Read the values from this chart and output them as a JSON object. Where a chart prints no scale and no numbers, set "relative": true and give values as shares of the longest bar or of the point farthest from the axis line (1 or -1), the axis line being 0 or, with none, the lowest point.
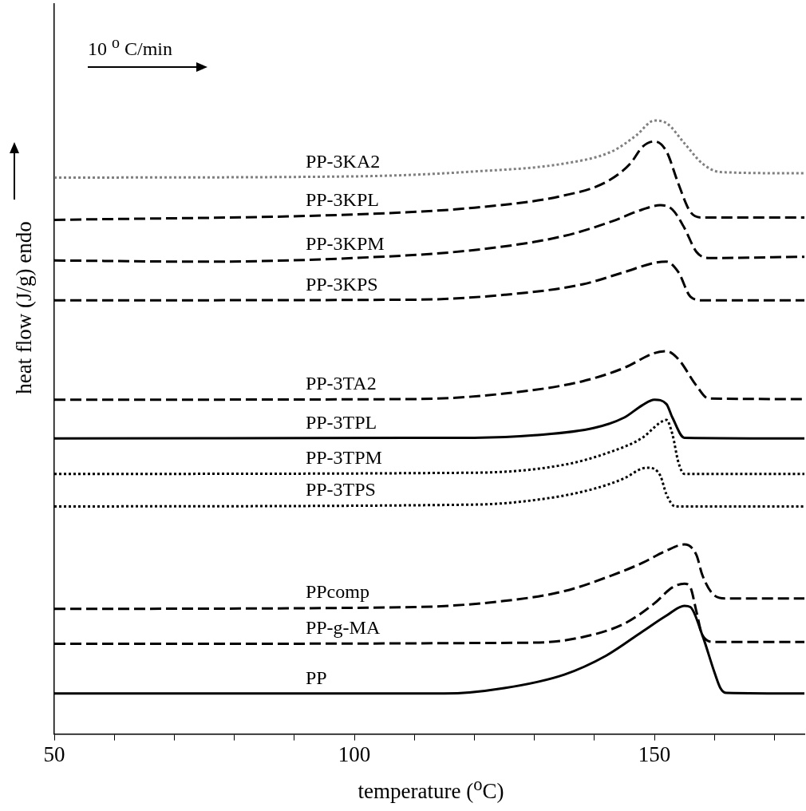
{
  "chart_data": {
    "type": "line",
    "xlabel": "temperature ($^{o}$C)",
    "ylabel": "heat flow (J/g) endo",
    "relative": true,
    "xlim": [
      50,
      175
    ],
    "xticks": [
      50,
      {
        "value": 60,
        "label": null
      },
      {
        "value": 70,
        "label": null
      },
      {
        "value": 80,
        "label": null
      },
      {
        "value": 90,
        "label": null
      },
      100,
      {
        "value": 110,
        "label": null
      },
      {
        "value": 120,
        "label": null
      },
      {
        "value": 130,
        "label": null
      },
      {
        "value": 140,
        "label": null
      },
      150,
      {
        "value": 160,
        "label": null
      },
      {
        "value": 170,
        "label": null
      }
    ],
    "tick_labels": "x",
    "legend": false,
    "grid": false,
    "marker": "none",
    "annotations": [
      "10 $^{o}$ C/min"
    ],
    "series": [
      {
        "name": "PP-3KA2",
        "color": "#808080",
        "line_style": "dotted",
        "x": [
          50,
          100,
          120,
          135,
          143,
          147,
          150,
          152,
          155,
          158,
          161,
          175
        ],
        "values": [
          0.907,
          0.909,
          0.917,
          0.93,
          0.95,
          0.976,
          1,
          0.996,
          0.963,
          0.93,
          0.916,
          0.914
        ]
      },
      {
        "name": "PP-3KPL",
        "color": "#000000",
        "line_style": "dashed",
        "x": [
          50,
          100,
          120,
          135,
          142,
          146,
          148,
          150,
          152,
          154,
          156,
          158,
          175
        ],
        "values": [
          0.838,
          0.847,
          0.858,
          0.878,
          0.9,
          0.93,
          0.957,
          0.966,
          0.95,
          0.897,
          0.851,
          0.842,
          0.842
        ]
      },
      {
        "name": "PP-3KPM",
        "color": "#000000",
        "line_style": "dashed",
        "x": [
          50,
          75,
          100,
          120,
          135,
          143,
          148,
          151,
          153,
          155,
          157,
          159,
          175
        ],
        "values": [
          0.772,
          0.77,
          0.776,
          0.789,
          0.812,
          0.836,
          0.855,
          0.862,
          0.855,
          0.825,
          0.786,
          0.776,
          0.778
        ]
      },
      {
        "name": "PP-3KPS",
        "color": "#000000",
        "line_style": "dashed",
        "x": [
          50,
          110,
          125,
          138,
          145,
          150,
          152,
          154,
          156,
          158,
          175
        ],
        "values": [
          0.707,
          0.708,
          0.716,
          0.733,
          0.753,
          0.768,
          0.77,
          0.753,
          0.713,
          0.707,
          0.707
        ]
      },
      {
        "name": "PP-3TA2",
        "color": "#000000",
        "line_style": "dashed",
        "x": [
          50,
          110,
          125,
          138,
          145,
          150,
          152,
          154,
          157,
          159,
          175
        ],
        "values": [
          0.545,
          0.546,
          0.555,
          0.575,
          0.597,
          0.621,
          0.624,
          0.611,
          0.568,
          0.547,
          0.546
        ]
      },
      {
        "name": "PP-3TPL",
        "color": "#000000",
        "line_style": "solid",
        "x": [
          50,
          120,
          130,
          140,
          145,
          148,
          150,
          152,
          153,
          155,
          175
        ],
        "values": [
          0.482,
          0.483,
          0.487,
          0.499,
          0.516,
          0.536,
          0.545,
          0.538,
          0.516,
          0.483,
          0.482
        ]
      },
      {
        "name": "PP-3TPM",
        "color": "#000000",
        "line_style": "dotted",
        "x": [
          50,
          120,
          135,
          143,
          148,
          151,
          152,
          153,
          154,
          155,
          175
        ],
        "values": [
          0.424,
          0.426,
          0.439,
          0.461,
          0.483,
          0.508,
          0.512,
          0.489,
          0.443,
          0.424,
          0.424
        ]
      },
      {
        "name": "PP-3TPS",
        "color": "#000000",
        "line_style": "dotted",
        "x": [
          50,
          120,
          132,
          140,
          145,
          148,
          149,
          151,
          152,
          153.5,
          175
        ],
        "values": [
          0.371,
          0.374,
          0.384,
          0.4,
          0.417,
          0.433,
          0.434,
          0.421,
          0.391,
          0.371,
          0.371
        ]
      },
      {
        "name": "PPcomp",
        "color": "#000000",
        "line_style": "dashed",
        "x": [
          50,
          110,
          125,
          135,
          143,
          148,
          152,
          155,
          157,
          158,
          160,
          162,
          175
        ],
        "values": [
          0.204,
          0.207,
          0.217,
          0.233,
          0.259,
          0.279,
          0.299,
          0.309,
          0.292,
          0.259,
          0.226,
          0.221,
          0.221
        ]
      },
      {
        "name": "PP-g-MA",
        "color": "#000000",
        "line_style": "dashed",
        "x": [
          50,
          130,
          138,
          145,
          150,
          153,
          155,
          156,
          157,
          158,
          160,
          175
        ],
        "values": [
          0.147,
          0.149,
          0.158,
          0.18,
          0.213,
          0.239,
          0.245,
          0.239,
          0.2,
          0.161,
          0.15,
          0.15
        ]
      },
      {
        "name": "PP",
        "color": "#000000",
        "line_style": "solid",
        "x": [
          50,
          115,
          125,
          135,
          142,
          148,
          152,
          155,
          156,
          158,
          160,
          161,
          162,
          175
        ],
        "values": [
          0.066,
          0.066,
          0.075,
          0.097,
          0.128,
          0.167,
          0.193,
          0.209,
          0.207,
          0.161,
          0.101,
          0.075,
          0.067,
          0.066
        ]
      }
    ]
  }
}
